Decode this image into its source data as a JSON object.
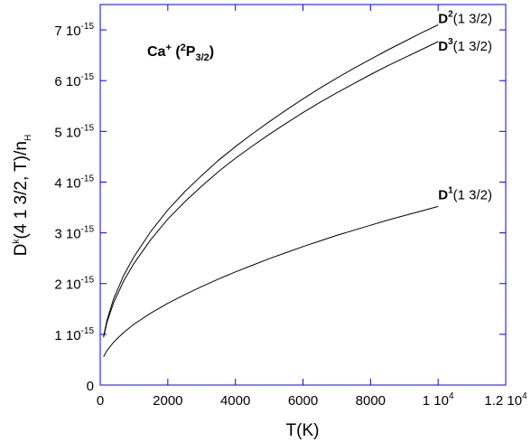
{
  "chart_data": {
    "type": "line",
    "title": {
      "ion": "Ca",
      "charge": "+",
      "open": " (",
      "mult": "2",
      "term": "P",
      "j": "3/2",
      "close": ")"
    },
    "xlabel": "T(K)",
    "ylabel": {
      "base": "D",
      "sup": "k",
      "args": "(4 1   3/2, T)/n",
      "sub": "H"
    },
    "xlim": [
      0,
      12000
    ],
    "ylim": [
      0,
      7.5e-15
    ],
    "grid": false,
    "x_ticks": [
      {
        "value": 0,
        "mantissa": "0",
        "exp": ""
      },
      {
        "value": 2000,
        "mantissa": "2000",
        "exp": ""
      },
      {
        "value": 4000,
        "mantissa": "4000",
        "exp": ""
      },
      {
        "value": 6000,
        "mantissa": "6000",
        "exp": ""
      },
      {
        "value": 8000,
        "mantissa": "8000",
        "exp": ""
      },
      {
        "value": 10000,
        "mantissa": "1 10",
        "exp": "4"
      },
      {
        "value": 12000,
        "mantissa": "1.2 10",
        "exp": "4"
      }
    ],
    "y_ticks": [
      {
        "value": 0,
        "mantissa": "0",
        "exp": ""
      },
      {
        "value": 1e-15,
        "mantissa": "1 10",
        "exp": "-15"
      },
      {
        "value": 2e-15,
        "mantissa": "2 10",
        "exp": "-15"
      },
      {
        "value": 3e-15,
        "mantissa": "3 10",
        "exp": "-15"
      },
      {
        "value": 4e-15,
        "mantissa": "4 10",
        "exp": "-15"
      },
      {
        "value": 5e-15,
        "mantissa": "5 10",
        "exp": "-15"
      },
      {
        "value": 6e-15,
        "mantissa": "6 10",
        "exp": "-15"
      },
      {
        "value": 7e-15,
        "mantissa": "7 10",
        "exp": "-15"
      }
    ],
    "series": [
      {
        "id": "d2",
        "label": {
          "base": "D",
          "sup": "2",
          "rest": "(1 3/2)"
        },
        "x": [
          100,
          200,
          400,
          700,
          1000,
          1500,
          2000,
          2500,
          3000,
          3500,
          4000,
          4500,
          5000,
          5500,
          6000,
          6500,
          7000,
          7500,
          8000,
          8500,
          9000,
          9500,
          10000
        ],
        "y": [
          9.6e-16,
          1.28e-15,
          1.71e-15,
          2.17e-15,
          2.53e-15,
          3.03e-15,
          3.45e-15,
          3.81e-15,
          4.13e-15,
          4.43e-15,
          4.7e-15,
          4.95e-15,
          5.19e-15,
          5.42e-15,
          5.64e-15,
          5.85e-15,
          6.05e-15,
          6.24e-15,
          6.42e-15,
          6.6e-15,
          6.77e-15,
          6.94e-15,
          7.1e-15
        ]
      },
      {
        "id": "d3",
        "label": {
          "base": "D",
          "sup": "3",
          "rest": "(1 3/2)"
        },
        "x": [
          100,
          200,
          400,
          700,
          1000,
          1500,
          2000,
          2500,
          3000,
          3500,
          4000,
          4500,
          5000,
          5500,
          6000,
          6500,
          7000,
          7500,
          8000,
          8500,
          9000,
          9500,
          10000
        ],
        "y": [
          9.4e-16,
          1.24e-15,
          1.63e-15,
          2.06e-15,
          2.4e-15,
          2.87e-15,
          3.27e-15,
          3.61e-15,
          3.92e-15,
          4.21e-15,
          4.47e-15,
          4.71e-15,
          4.94e-15,
          5.16e-15,
          5.37e-15,
          5.57e-15,
          5.76e-15,
          5.94e-15,
          6.12e-15,
          6.29e-15,
          6.45e-15,
          6.61e-15,
          6.77e-15
        ]
      },
      {
        "id": "d1",
        "label": {
          "base": "D",
          "sup": "1",
          "rest": "(1 3/2)"
        },
        "x": [
          100,
          200,
          400,
          700,
          1000,
          1500,
          2000,
          2500,
          3000,
          3500,
          4000,
          4500,
          5000,
          5500,
          6000,
          6500,
          7000,
          7500,
          8000,
          8500,
          9000,
          9500,
          10000
        ],
        "y": [
          5.6e-16,
          6.8e-16,
          8.5e-16,
          1.04e-15,
          1.2e-15,
          1.42e-15,
          1.61e-15,
          1.78e-15,
          1.94e-15,
          2.09e-15,
          2.23e-15,
          2.36e-15,
          2.49e-15,
          2.61e-15,
          2.73e-15,
          2.84e-15,
          2.95e-15,
          3.05e-15,
          3.15e-15,
          3.25e-15,
          3.34e-15,
          3.43e-15,
          3.52e-15
        ]
      }
    ]
  }
}
